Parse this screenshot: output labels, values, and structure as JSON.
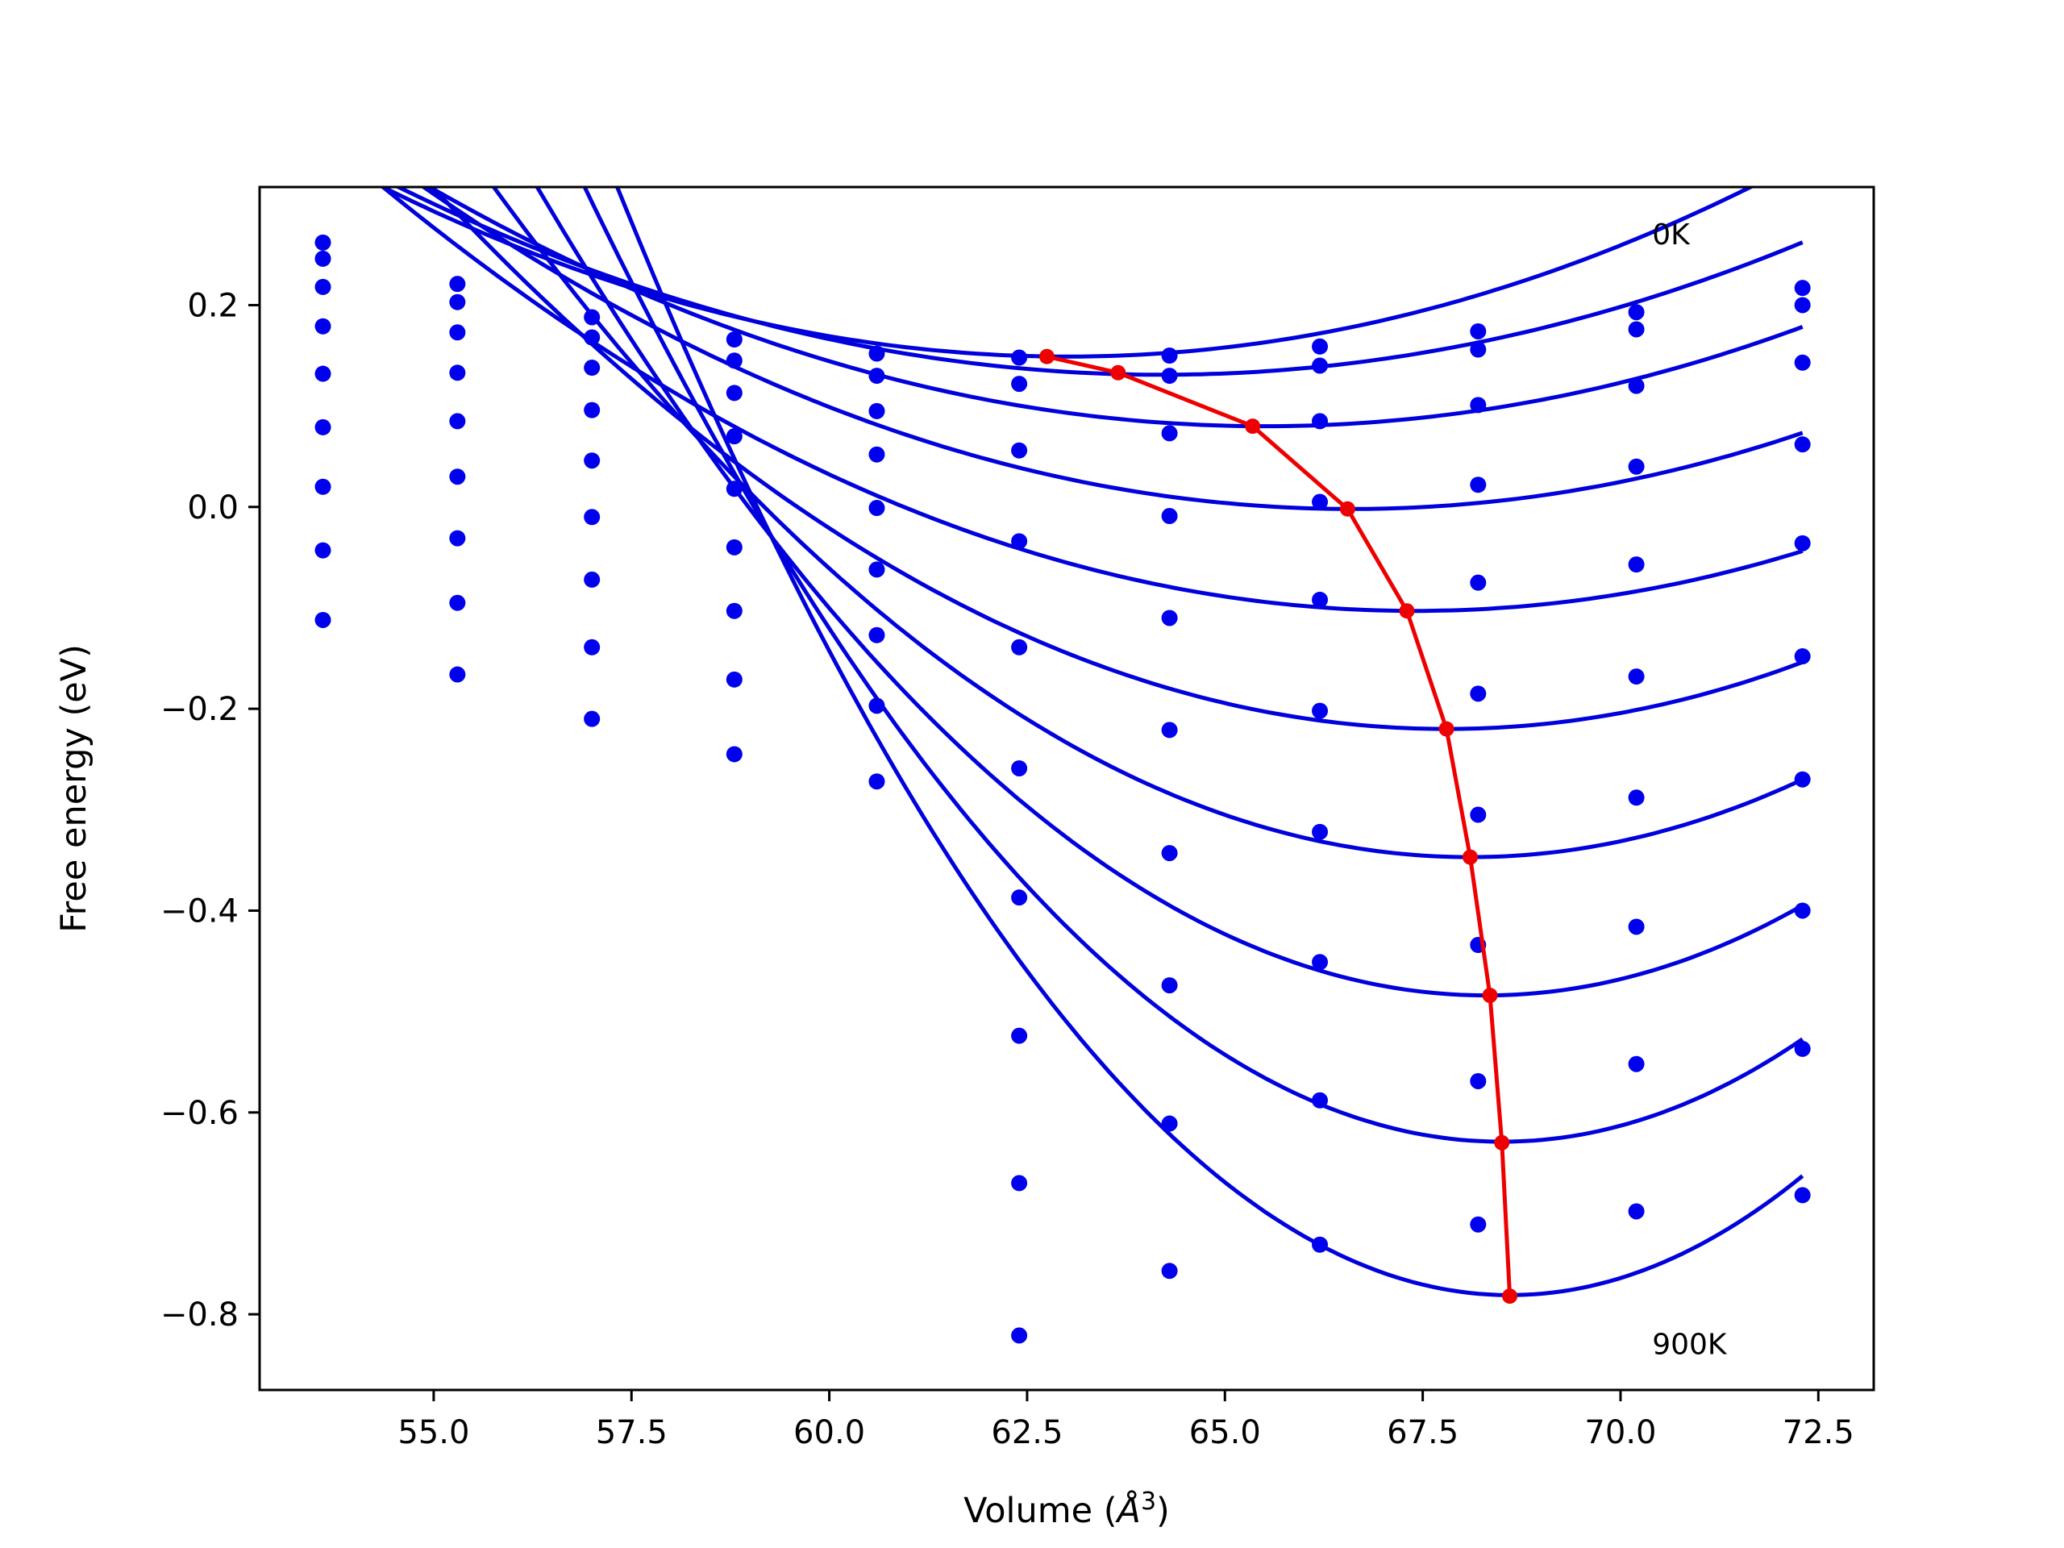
{
  "chart_data": {
    "type": "scatter",
    "xlabel_text": "Volume (",
    "xlabel_sym": "Å",
    "xlabel_sup": "3",
    "xlabel_close": ")",
    "ylabel": "Free energy (eV)",
    "xlim": [
      52.8,
      73.2
    ],
    "ylim": [
      -0.875,
      0.317
    ],
    "xticks": [
      55.0,
      57.5,
      60.0,
      62.5,
      65.0,
      67.5,
      70.0,
      72.5
    ],
    "xtick_labels": [
      "55.0",
      "57.5",
      "60.0",
      "62.5",
      "65.0",
      "67.5",
      "70.0",
      "72.5"
    ],
    "yticks": [
      0.2,
      0.0,
      -0.2,
      -0.4,
      -0.6,
      -0.8
    ],
    "ytick_labels": [
      "0.2",
      "0.0",
      "−0.2",
      "−0.4",
      "−0.6",
      "−0.8"
    ],
    "annotations": [
      {
        "text": "0K",
        "x": 70.4,
        "y": 0.27
      },
      {
        "text": "900K",
        "x": 70.4,
        "y": -0.83
      }
    ],
    "volumes": [
      53.6,
      55.3,
      57.0,
      58.8,
      60.6,
      62.4,
      64.3,
      66.2,
      68.2,
      70.2,
      72.3
    ],
    "series": [
      {
        "values": [
          0.262,
          0.221,
          0.188,
          0.166,
          0.152,
          0.148,
          0.15,
          0.159,
          0.174,
          0.193,
          0.217
        ]
      },
      {
        "values": [
          0.246,
          0.203,
          0.168,
          0.145,
          0.13,
          0.122,
          0.13,
          0.14,
          0.156,
          0.176,
          0.2
        ]
      },
      {
        "values": [
          0.218,
          0.173,
          0.138,
          0.113,
          0.095,
          0.056,
          0.073,
          0.085,
          0.101,
          0.12,
          0.143
        ]
      },
      {
        "values": [
          0.179,
          0.133,
          0.096,
          0.07,
          0.052,
          -0.034,
          -0.009,
          0.005,
          0.022,
          0.04,
          0.062
        ]
      },
      {
        "values": [
          0.132,
          0.085,
          0.046,
          0.018,
          -0.001,
          -0.139,
          -0.11,
          -0.092,
          -0.075,
          -0.057,
          -0.036
        ]
      },
      {
        "values": [
          0.079,
          0.03,
          -0.01,
          -0.04,
          -0.062,
          -0.259,
          -0.221,
          -0.202,
          -0.185,
          -0.168,
          -0.148
        ]
      },
      {
        "values": [
          0.02,
          -0.031,
          -0.072,
          -0.103,
          -0.127,
          -0.387,
          -0.343,
          -0.322,
          -0.305,
          -0.288,
          -0.27
        ]
      },
      {
        "values": [
          -0.043,
          -0.095,
          -0.139,
          -0.171,
          -0.197,
          -0.524,
          -0.474,
          -0.451,
          -0.434,
          -0.416,
          -0.4
        ]
      },
      {
        "values": [
          -0.112,
          -0.166,
          -0.21,
          -0.245,
          -0.272,
          -0.67,
          -0.611,
          -0.588,
          -0.569,
          -0.552,
          -0.537
        ]
      },
      {
        "values": [
          null,
          null,
          null,
          null,
          null,
          -0.821,
          -0.757,
          -0.731,
          -0.711,
          -0.698,
          -0.682
        ]
      }
    ],
    "fits": [
      {
        "v0": 63.0,
        "e0": 0.149,
        "a": 0.00225,
        "x_start": 53.6
      },
      {
        "v0": 64.2,
        "e0": 0.131,
        "a": 0.002,
        "x_start": 53.6
      },
      {
        "v0": 65.5,
        "e0": 0.08,
        "a": 0.00213,
        "x_start": 53.6
      },
      {
        "v0": 66.6,
        "e0": -0.002,
        "a": 0.00232,
        "x_start": 53.6
      },
      {
        "v0": 67.4,
        "e0": -0.103,
        "a": 0.00247,
        "x_start": 53.6
      },
      {
        "v0": 67.8,
        "e0": -0.22,
        "a": 0.00327,
        "x_start": 53.6
      },
      {
        "v0": 68.1,
        "e0": -0.347,
        "a": 0.00436,
        "x_start": 53.6
      },
      {
        "v0": 68.3,
        "e0": -0.484,
        "a": 0.00557,
        "x_start": 53.6
      },
      {
        "v0": 68.5,
        "e0": -0.629,
        "a": 0.00704,
        "x_start": 53.6
      },
      {
        "v0": 68.6,
        "e0": -0.781,
        "a": 0.00863,
        "x_start": 53.6
      }
    ],
    "minima_curve": {
      "x": [
        62.75,
        63.65,
        65.35,
        66.55,
        67.3,
        67.8,
        68.1,
        68.35,
        68.5,
        68.6
      ],
      "y": [
        0.149,
        0.133,
        0.08,
        -0.002,
        -0.103,
        -0.22,
        -0.347,
        -0.484,
        -0.63,
        -0.782
      ]
    },
    "colors": {
      "points": "#0000ee",
      "fits": "#0000dd",
      "minima": "#ee0000",
      "axes": "#000000"
    }
  }
}
